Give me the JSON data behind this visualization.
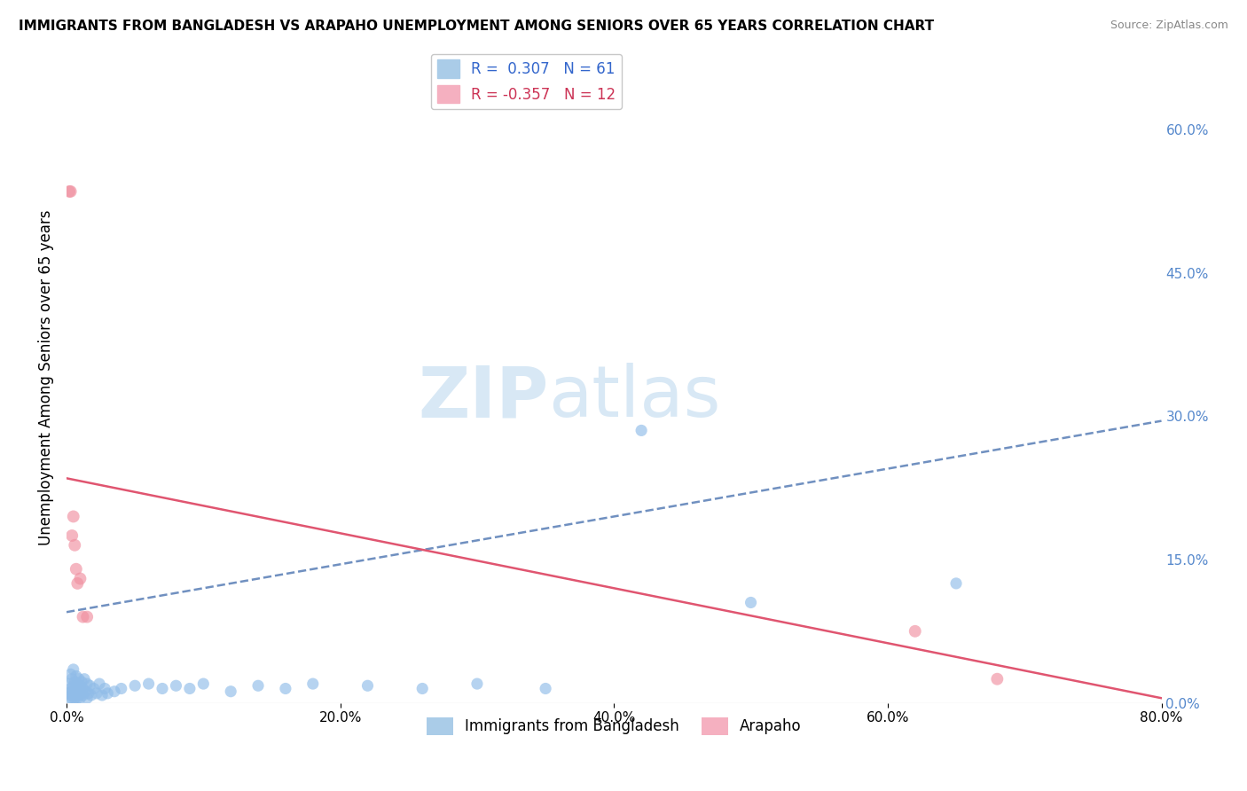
{
  "title": "IMMIGRANTS FROM BANGLADESH VS ARAPAHO UNEMPLOYMENT AMONG SENIORS OVER 65 YEARS CORRELATION CHART",
  "source": "Source: ZipAtlas.com",
  "ylabel": "Unemployment Among Seniors over 65 years",
  "xlim": [
    0,
    0.8
  ],
  "ylim": [
    0,
    0.68
  ],
  "xticks": [
    0.0,
    0.2,
    0.4,
    0.6,
    0.8
  ],
  "xtick_labels": [
    "0.0%",
    "20.0%",
    "40.0%",
    "60.0%",
    "80.0%"
  ],
  "yticks_right": [
    0.0,
    0.15,
    0.3,
    0.45,
    0.6
  ],
  "ytick_right_labels": [
    "0.0%",
    "15.0%",
    "30.0%",
    "45.0%",
    "60.0%"
  ],
  "watermark_zip": "ZIP",
  "watermark_atlas": "atlas",
  "legend_label_blue": "R =  0.307   N = 61",
  "legend_label_pink": "R = -0.357   N = 12",
  "blue_color": "#90bce8",
  "pink_color": "#f090a0",
  "blue_line_color": "#7090c0",
  "pink_line_color": "#e05570",
  "blue_scatter_x": [
    0.001,
    0.002,
    0.002,
    0.003,
    0.003,
    0.003,
    0.004,
    0.004,
    0.004,
    0.005,
    0.005,
    0.005,
    0.006,
    0.006,
    0.006,
    0.007,
    0.007,
    0.007,
    0.008,
    0.008,
    0.008,
    0.009,
    0.009,
    0.01,
    0.01,
    0.011,
    0.011,
    0.012,
    0.012,
    0.013,
    0.014,
    0.015,
    0.015,
    0.016,
    0.017,
    0.018,
    0.02,
    0.022,
    0.024,
    0.026,
    0.028,
    0.03,
    0.035,
    0.04,
    0.05,
    0.06,
    0.07,
    0.08,
    0.09,
    0.1,
    0.12,
    0.14,
    0.16,
    0.18,
    0.22,
    0.26,
    0.3,
    0.35,
    0.42,
    0.5,
    0.65
  ],
  "blue_scatter_y": [
    0.01,
    0.005,
    0.02,
    0.008,
    0.015,
    0.03,
    0.005,
    0.012,
    0.025,
    0.008,
    0.018,
    0.035,
    0.005,
    0.01,
    0.022,
    0.008,
    0.015,
    0.028,
    0.005,
    0.012,
    0.02,
    0.008,
    0.025,
    0.005,
    0.018,
    0.01,
    0.022,
    0.008,
    0.015,
    0.025,
    0.012,
    0.005,
    0.02,
    0.01,
    0.018,
    0.008,
    0.015,
    0.01,
    0.02,
    0.008,
    0.015,
    0.01,
    0.012,
    0.015,
    0.018,
    0.02,
    0.015,
    0.018,
    0.015,
    0.02,
    0.012,
    0.018,
    0.015,
    0.02,
    0.018,
    0.015,
    0.02,
    0.015,
    0.285,
    0.105,
    0.125
  ],
  "pink_scatter_x": [
    0.002,
    0.003,
    0.004,
    0.005,
    0.006,
    0.007,
    0.008,
    0.01,
    0.012,
    0.015,
    0.62,
    0.68
  ],
  "pink_scatter_y": [
    0.535,
    0.535,
    0.175,
    0.195,
    0.165,
    0.14,
    0.125,
    0.13,
    0.09,
    0.09,
    0.075,
    0.025
  ],
  "blue_line_x0": 0.0,
  "blue_line_x1": 0.8,
  "blue_line_y0": 0.095,
  "blue_line_y1": 0.295,
  "pink_line_x0": 0.0,
  "pink_line_x1": 0.8,
  "pink_line_y0": 0.235,
  "pink_line_y1": 0.005,
  "background_color": "#ffffff",
  "grid_color": "#cccccc",
  "legend_bottom": [
    "Immigrants from Bangladesh",
    "Arapaho"
  ],
  "legend_bottom_colors": [
    "#aacce8",
    "#f5b0c0"
  ]
}
